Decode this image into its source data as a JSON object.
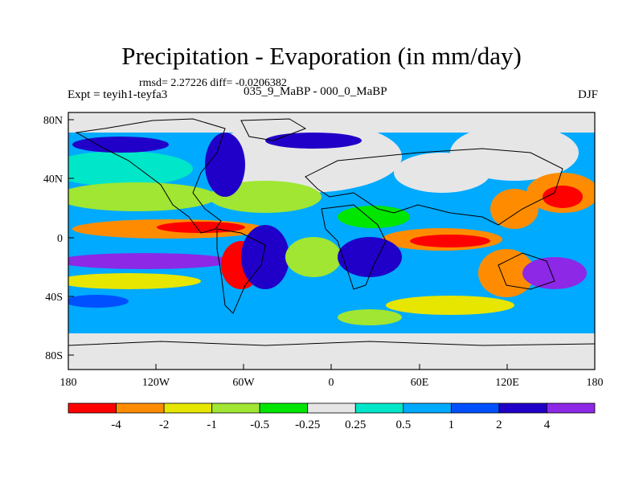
{
  "title": "Precipitation - Evaporation (in mm/day)",
  "stats": "rmsd= 2.27226 diff= -0.0206382",
  "experiment": "Expt = teyih1-teyfa3",
  "period": "035_9_MaBP - 000_0_MaBP",
  "season": "DJF",
  "lat_labels": [
    "80N",
    "40N",
    "0",
    "40S",
    "80S"
  ],
  "lon_labels": [
    "180",
    "120W",
    "60W",
    "0",
    "60E",
    "120E",
    "180"
  ],
  "colorbar": {
    "labels": [
      "-4",
      "-2",
      "-1",
      "-0.5",
      "-0.25",
      "0.25",
      "0.5",
      "1",
      "2",
      "4"
    ],
    "colors": [
      "#ff0000",
      "#ff8c00",
      "#e6e600",
      "#a0e632",
      "#00e600",
      "#e6e6e6",
      "#00e6c8",
      "#00aaff",
      "#0050ff",
      "#2000c8",
      "#8c28e6"
    ]
  }
}
